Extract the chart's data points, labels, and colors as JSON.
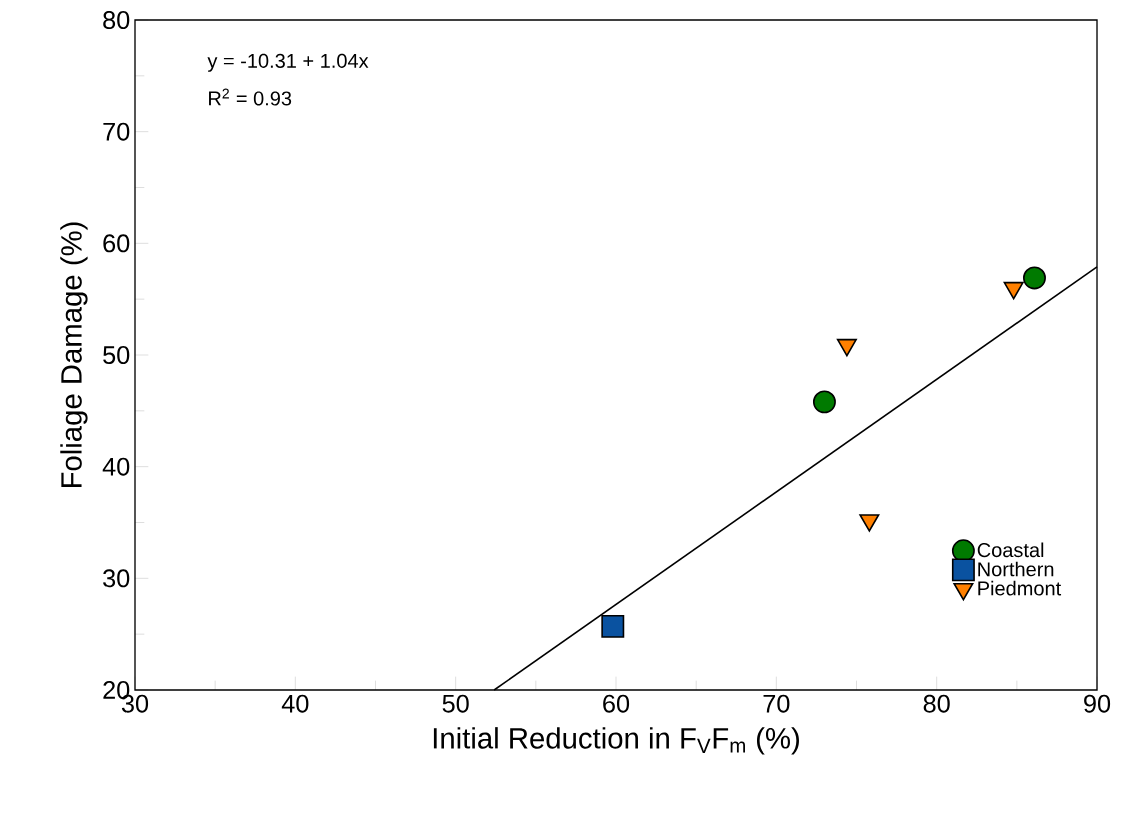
{
  "chart_data": {
    "type": "scatter",
    "xlabel": "Initial Reduction in F$_{V}$F$_{m}$ (%)",
    "ylabel": "Foliage Damage (%)",
    "annotations": [
      "y = -10.31 + 1.04x",
      "R$^{2}$ = 0.93"
    ],
    "xlim": [
      30,
      90
    ],
    "xticks": [
      30,
      40,
      50,
      60,
      70,
      80,
      90
    ],
    "ylim": [
      20,
      80
    ],
    "yticks": [
      20,
      30,
      40,
      50,
      60,
      70,
      80
    ],
    "legend": "bottom right",
    "grid": false,
    "series": [
      {
        "name": "Coastal",
        "color": "#007a00",
        "marker": "circle",
        "x": [
          73.0,
          86.1
        ],
        "values": [
          45.8,
          56.9
        ]
      },
      {
        "name": "Northern",
        "color": "#0a52a0",
        "marker": "square",
        "x": [
          59.8
        ],
        "values": [
          25.7
        ]
      },
      {
        "name": "Piedmont",
        "color": "#ff8000",
        "marker": "triangle",
        "x": [
          74.4,
          84.8,
          75.8
        ],
        "values": [
          50.9,
          56.0,
          35.2
        ]
      },
      {
        "type": "line",
        "color": "#000000",
        "marker": "none",
        "x": [
          52.4,
          90
        ],
        "values": [
          20,
          57.9
        ]
      }
    ]
  }
}
